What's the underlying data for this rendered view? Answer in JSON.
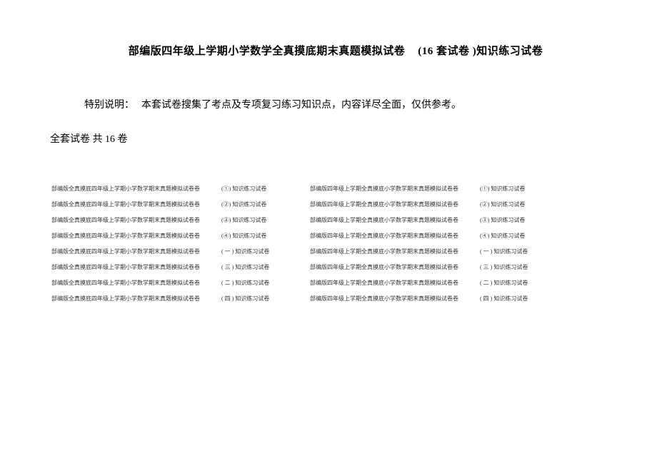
{
  "title_part1": "部编版四年级上学期小学数学全真摸底期末真题模拟试卷",
  "title_part2": "(16 套试卷 )知识练习试卷",
  "note_label": "特别说明：",
  "note_body": "本套试卷搜集了考点及专项复习练习知识点，内容详尽全面，仅供参考。",
  "total_line": "全套试卷 共  16  卷",
  "left_rows": [
    {
      "title": "部编版全真摸底四年级上学期小学数学期末真题模拟试卷卷",
      "tag": "(①) 知识练习试卷"
    },
    {
      "title": "部编版全真摸底四年级上学期小学数学期末真题模拟试卷卷",
      "tag": "(②) 知识练习试卷"
    },
    {
      "title": "部编版全真摸底四年级上学期小学数学期末真题模拟试卷卷",
      "tag": "(③) 知识练习试卷"
    },
    {
      "title": "部编版全真摸底四年级上学期小学数学期末真题模拟试卷卷",
      "tag": "(④) 知识练习试卷"
    },
    {
      "title": "部编版全真摸底四年级上学期小学数学期末真题模拟试卷卷",
      "tag": "( 一 ) 知识练习试卷"
    },
    {
      "title": "部编版全真摸底四年级上学期小学数学期末真题模拟试卷卷",
      "tag": "( 三 ) 知识练习试卷"
    },
    {
      "title": "部编版全真摸底四年级上学期小学数学期末真题模拟试卷卷",
      "tag": "( 二 ) 知识练习试卷"
    },
    {
      "title": "部编版全真摸底四年级上学期小学数学期末真题模拟试卷卷",
      "tag": "( 四 ) 知识练习试卷"
    }
  ],
  "right_rows": [
    {
      "title": "部编版四年级上学期全真摸底小学数学期末真题模拟试卷卷",
      "tag": "(①) 知识练习试卷"
    },
    {
      "title": "部编版四年级上学期全真摸底小学数学期末真题模拟试卷卷",
      "tag": "(②) 知识练习试卷"
    },
    {
      "title": "部编版四年级上学期全真摸底小学数学期末真题模拟试卷卷",
      "tag": "(③) 知识练习试卷"
    },
    {
      "title": "部编版四年级上学期全真摸底小学数学期末真题模拟试卷卷",
      "tag": "(④) 知识练习试卷"
    },
    {
      "title": "部编版四年级上学期全真摸底小学数学期末真题模拟试卷卷",
      "tag": "( 一 ) 知识练习试卷"
    },
    {
      "title": "部编版四年级上学期全真摸底小学数学期末真题模拟试卷卷",
      "tag": "( 三 ) 知识练习试卷"
    },
    {
      "title": "部编版四年级上学期全真摸底小学数学期末真题模拟试卷卷",
      "tag": "( 二 ) 知识练习试卷"
    },
    {
      "title": "部编版四年级上学期全真摸底小学数学期末真题模拟试卷卷",
      "tag": "( 四 ) 知识练习试卷"
    }
  ]
}
